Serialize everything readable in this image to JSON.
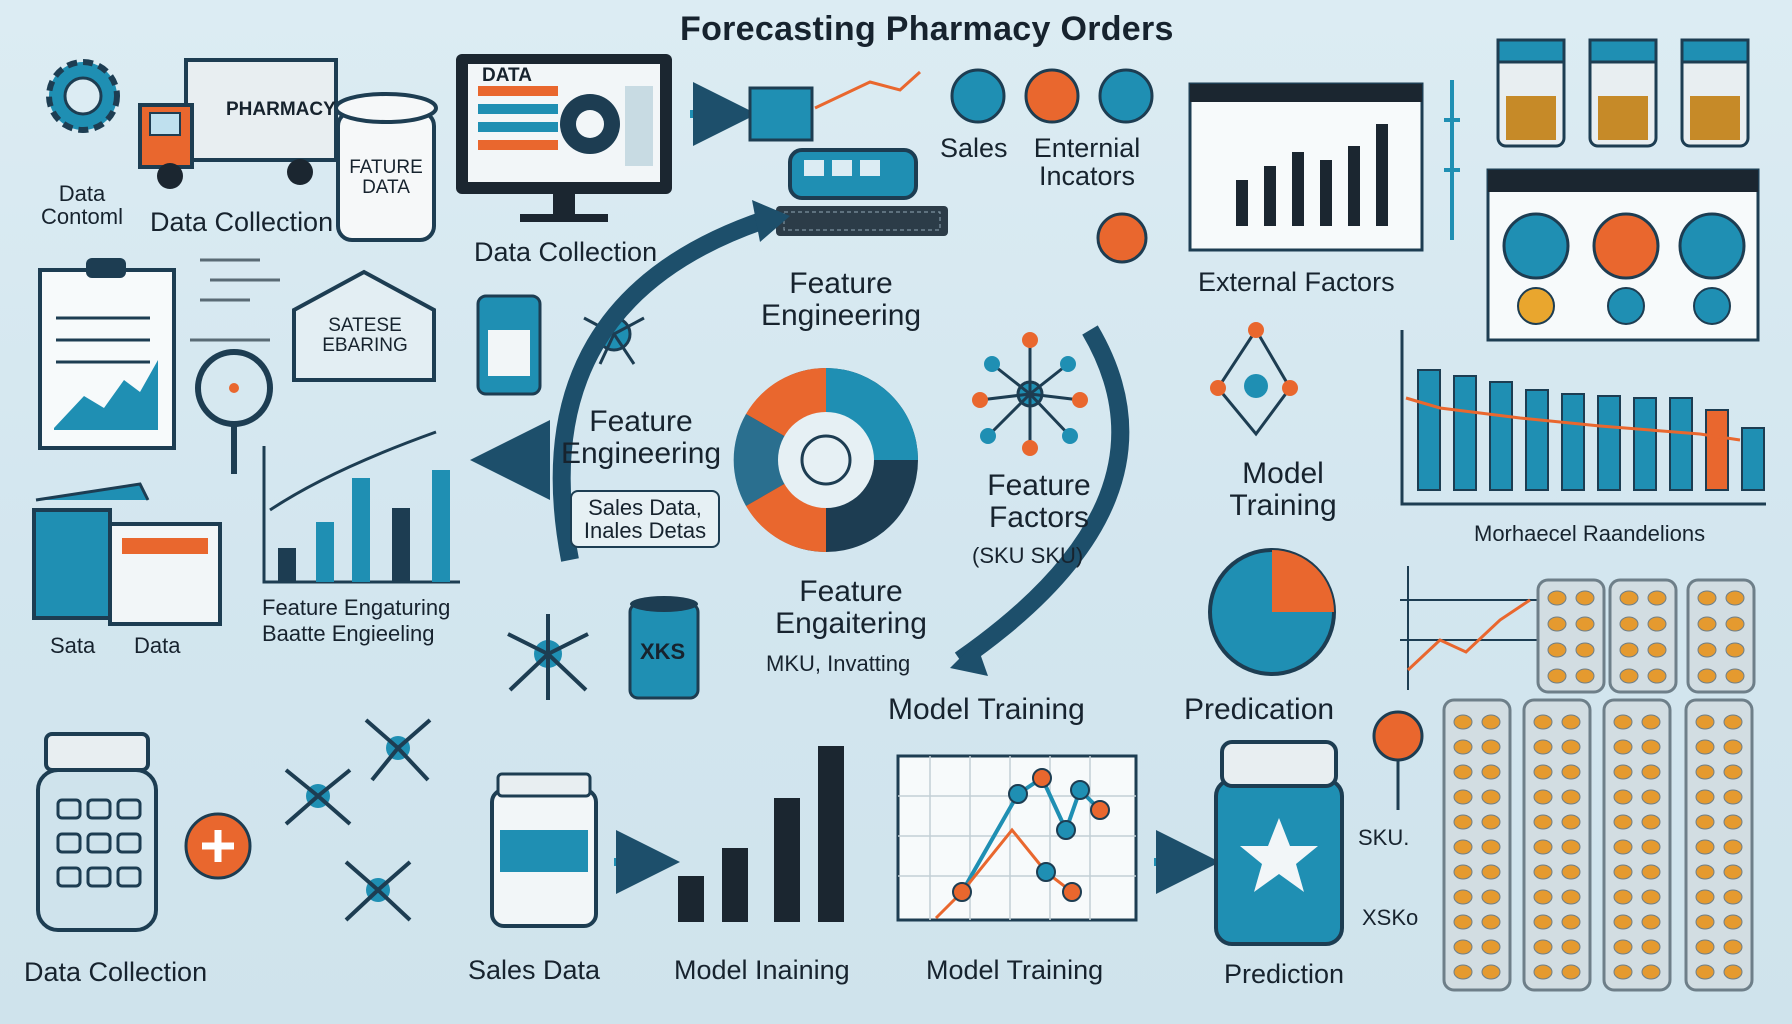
{
  "title": "Forecasting Pharmacy Orders",
  "colors": {
    "teal": "#1f8fb3",
    "dark": "#1d3d52",
    "orange": "#e9672e",
    "navy": "#1b2630",
    "bg": "#d8eaf2"
  },
  "truck_sign": "PHARMACY",
  "jar_label": "FATURE DATA",
  "house_label": "SATESE EBARING",
  "jar2_label": "XKS",
  "monitor_label": "DATA",
  "labels": {
    "data_contoml": "Data Contoml",
    "data_collection_1": "Data Collection",
    "data_collection_2": "Data Collection",
    "sales": "Sales",
    "enternial_incators": "Enternial Incators",
    "external_factors": "External Factors",
    "feature_engineering_top": "Feature Engineering",
    "feature_engineering_left": "Feature Engineering",
    "sales_inales_box": "Sales Data, Inales Detas",
    "feature_factors": "Feature Factors",
    "sku_sku": "(SKU SKU)",
    "model_training_right": "Model Training",
    "feature_engaitering": "Feature Engaitering",
    "mku_invatting": "MKU, Invatting",
    "model_training_center": "Model Training",
    "predication": "Predication",
    "sata": "Sata",
    "data_small": "Data",
    "feature_engaturing": "Feature Engaturing",
    "baatte_engieeling": "Baatte Engieeling",
    "data_collection_bottom": "Data Collection",
    "sales_data_bottom": "Sales Data",
    "model_inaining": "Model Inaining",
    "model_training_bottom": "Model Training",
    "prediction_bottom": "Prediction",
    "sku_right": "SKU.",
    "xsko_right": "XSKo",
    "morhaecel": "Morhaecel Raandelions"
  }
}
